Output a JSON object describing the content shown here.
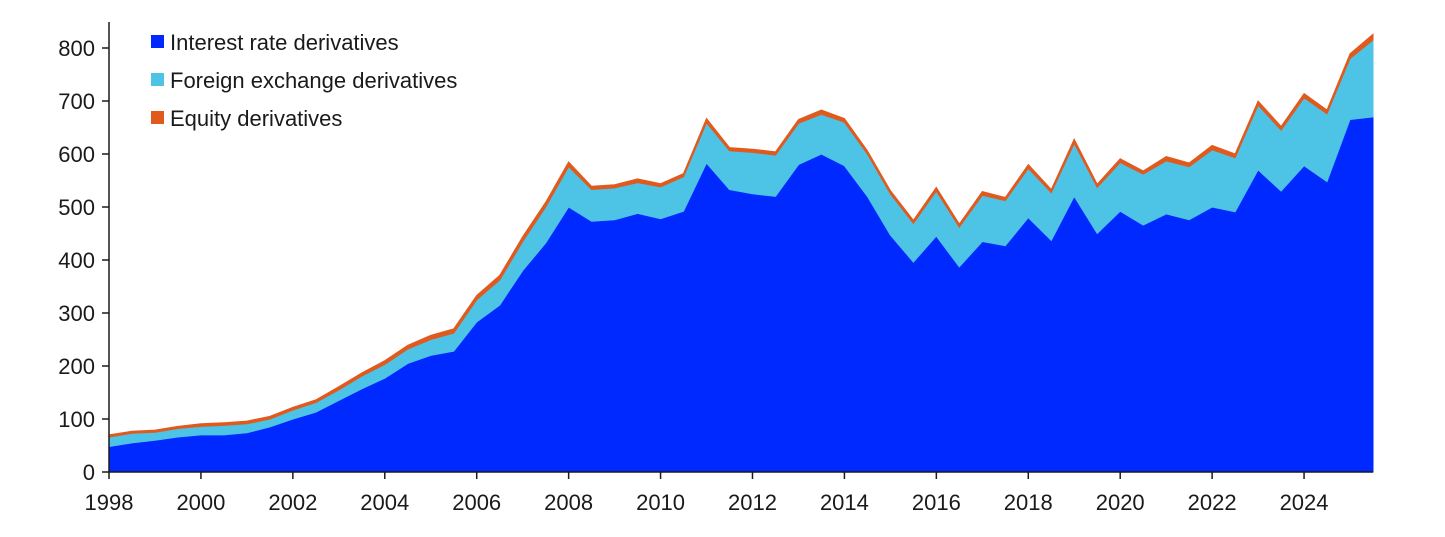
{
  "chart_data": {
    "type": "area",
    "stacked": true,
    "xlim": [
      1998,
      2025.5
    ],
    "ylim": [
      0,
      800
    ],
    "y_ticks": [
      0,
      100,
      200,
      300,
      400,
      500,
      600,
      700,
      800
    ],
    "x_ticks": [
      1998,
      2000,
      2002,
      2004,
      2006,
      2008,
      2010,
      2012,
      2014,
      2016,
      2018,
      2020,
      2022,
      2024
    ],
    "legend_position": "top-left",
    "grid": false,
    "x": [
      1998,
      1998.5,
      1999,
      1999.5,
      2000,
      2000.5,
      2001,
      2001.5,
      2002,
      2002.5,
      2003,
      2003.5,
      2004,
      2004.5,
      2005,
      2005.5,
      2006,
      2006.5,
      2007,
      2007.5,
      2008,
      2008.5,
      2009,
      2009.5,
      2010,
      2010.5,
      2011,
      2011.5,
      2012,
      2012.5,
      2013,
      2013.5,
      2014,
      2014.5,
      2015,
      2015.5,
      2016,
      2016.5,
      2017,
      2017.5,
      2018,
      2018.5,
      2019,
      2019.5,
      2020,
      2020.5,
      2021,
      2021.5,
      2022,
      2022.5,
      2023,
      2023.5,
      2024,
      2024.5,
      2025,
      2025.5
    ],
    "series": [
      {
        "name": "Interest rate derivatives",
        "color": "#0029ff",
        "values": [
          48,
          55,
          60,
          66,
          70,
          70,
          74,
          85,
          100,
          113,
          135,
          157,
          177,
          205,
          220,
          228,
          283,
          315,
          380,
          432,
          500,
          473,
          476,
          488,
          478,
          492,
          583,
          533,
          525,
          520,
          580,
          600,
          578,
          520,
          447,
          396,
          445,
          387,
          435,
          427,
          480,
          437,
          520,
          450,
          492,
          466,
          487,
          476,
          500,
          491,
          570,
          530,
          578,
          548,
          665,
          670
        ]
      },
      {
        "name": "Foreign exchange derivatives",
        "color": "#4dc3e6",
        "values": [
          18,
          18,
          15,
          16,
          16,
          18,
          17,
          15,
          17,
          18,
          20,
          24,
          26,
          27,
          30,
          34,
          42,
          47,
          55,
          68,
          76,
          60,
          60,
          58,
          60,
          65,
          76,
          73,
          78,
          78,
          78,
          75,
          82,
          80,
          78,
          73,
          85,
          75,
          87,
          85,
          93,
          90,
          100,
          87,
          92,
          96,
          100,
          100,
          108,
          102,
          122,
          115,
          128,
          128,
          115,
          145
        ]
      },
      {
        "name": "Equity derivatives",
        "color": "#e05a1e",
        "values": [
          4,
          4,
          4,
          4,
          5,
          5,
          5,
          5,
          5,
          5,
          6,
          6,
          7,
          7,
          8,
          8,
          8,
          9,
          9,
          9,
          9,
          6,
          6,
          7,
          6,
          6,
          8,
          6,
          6,
          6,
          7,
          8,
          7,
          6,
          6,
          6,
          7,
          6,
          7,
          6,
          7,
          6,
          8,
          6,
          7,
          6,
          8,
          7,
          8,
          7,
          8,
          7,
          8,
          7,
          9,
          11
        ]
      }
    ]
  }
}
